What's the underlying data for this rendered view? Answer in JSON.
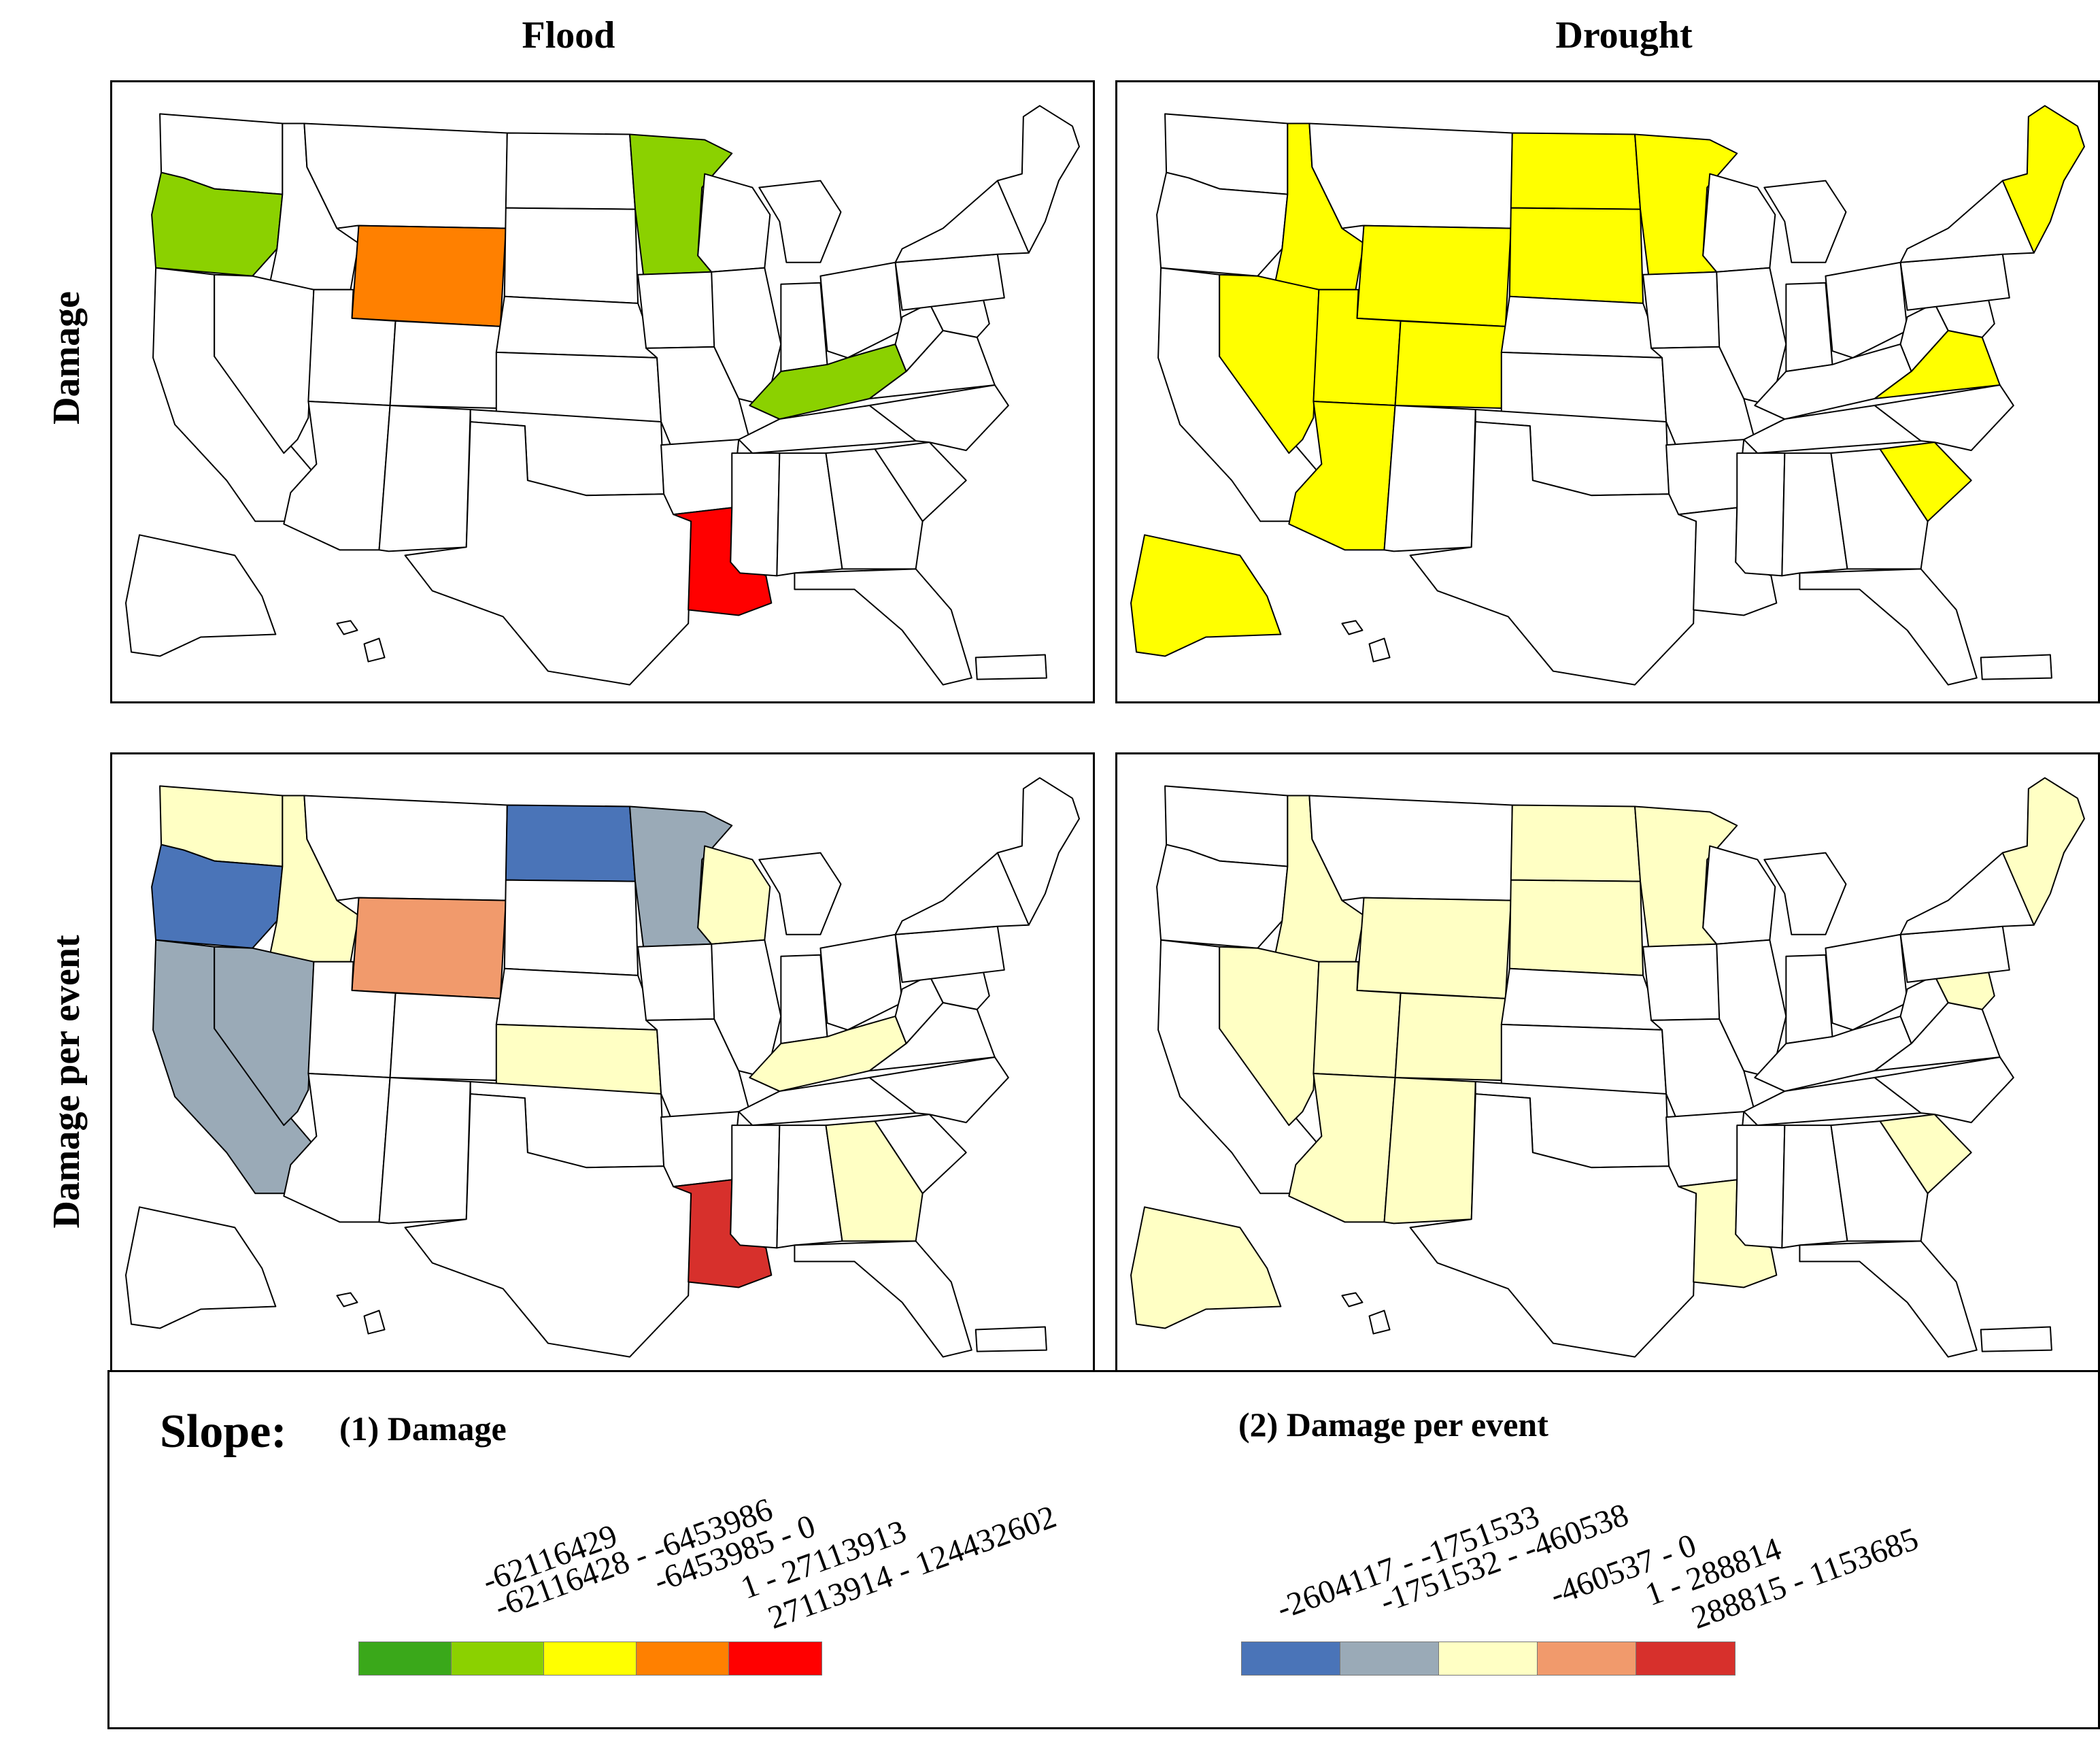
{
  "columns": {
    "left": "Flood",
    "right": "Drought"
  },
  "rows": {
    "top": "Damage",
    "bottom": "Damage per event"
  },
  "colors": {
    "none": "#ffffff",
    "damage": [
      "#3aa81a",
      "#8bd100",
      "#ffff00",
      "#ff8000",
      "#ff0000"
    ],
    "per_event": [
      "#4a74b8",
      "#9aaab7",
      "#ffffc4",
      "#f19a6c",
      "#d7302c"
    ]
  },
  "maps": {
    "flood_damage": {
      "oregon": 1,
      "minnesota": 1,
      "kentucky": 1,
      "wyoming": 3,
      "louisiana": 4
    },
    "drought_damage": {
      "idaho": 2,
      "nevada": 2,
      "utah": 2,
      "arizona": 2,
      "wyoming": 2,
      "colorado": 2,
      "north_dakota": 2,
      "south_dakota": 2,
      "minnesota": 2,
      "new_england": 2,
      "virginia": 2,
      "south_carolina": 2,
      "alaska": 2
    },
    "flood_per_event": {
      "oregon": 0,
      "north_dakota": 0,
      "california": 1,
      "nevada": 1,
      "minnesota": 1,
      "washington": 2,
      "idaho": 2,
      "wisconsin": 2,
      "kansas": 2,
      "kentucky": 2,
      "georgia": 2,
      "wyoming": 3,
      "louisiana": 4
    },
    "drought_per_event": {
      "idaho": 2,
      "nevada": 2,
      "utah": 2,
      "arizona": 2,
      "new_mexico": 2,
      "wyoming": 2,
      "colorado": 2,
      "north_dakota": 2,
      "south_dakota": 2,
      "minnesota": 2,
      "new_england": 2,
      "maryland": 2,
      "south_carolina": 2,
      "louisiana": 2,
      "alaska": 2
    }
  },
  "legend": {
    "slope_label": "Slope:",
    "damage_title": "(1) Damage",
    "per_event_title": "(2) Damage per event",
    "damage_classes": [
      "-62116429",
      "-62116428 - -6453986",
      "-6453985 - 0",
      "1 - 27113913",
      "27113914 - 124432602"
    ],
    "per_event_classes": [
      "-2604117 - -1751533",
      "-1751532 - -460538",
      "-460537 - 0",
      "1 - 288814",
      "288815 - 1153685"
    ]
  }
}
